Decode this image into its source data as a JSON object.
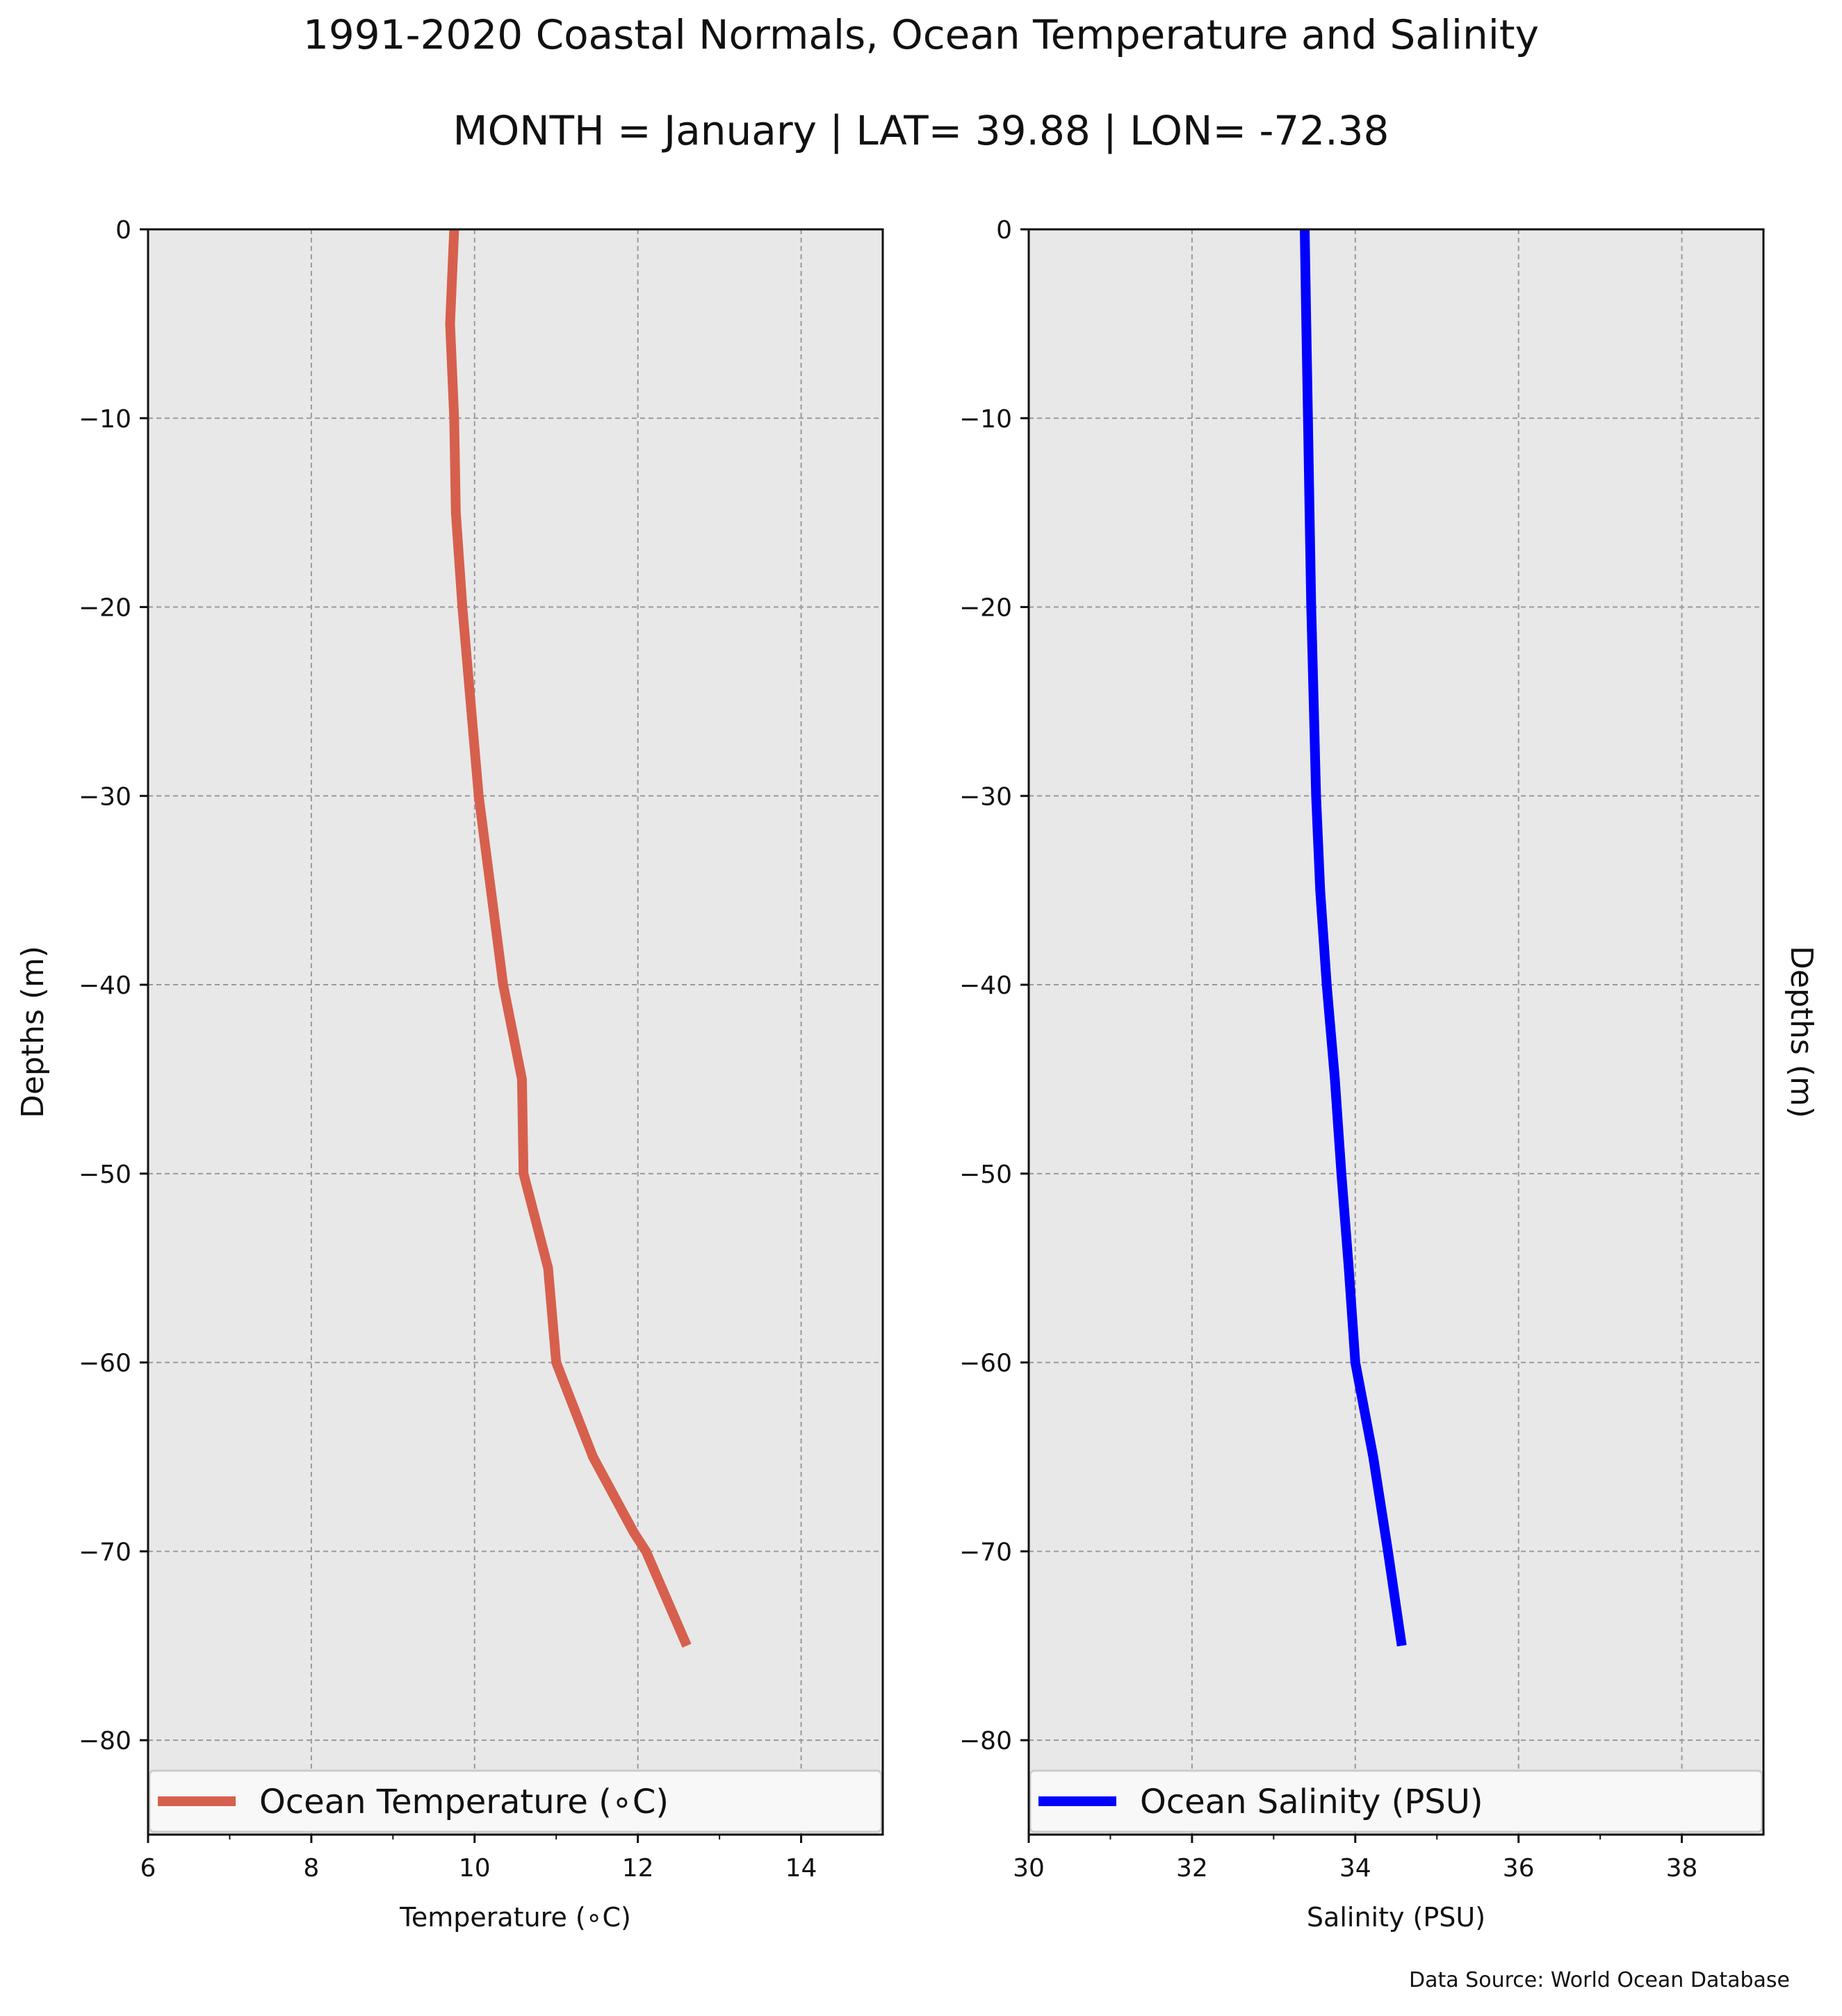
{
  "figure": {
    "title": "1991-2020 Coastal Normals, Ocean Temperature and Salinity",
    "subtitle": "MONTH = January | LAT= 39.88 | LON= -72.38",
    "source": "Data Source: World Ocean Database"
  },
  "chart_data": [
    {
      "type": "line",
      "xlabel": "Temperature (∘C)",
      "ylabel": "Depths (m)",
      "ylabel_side": "left",
      "xlim": [
        6,
        15
      ],
      "ylim": [
        -85,
        0
      ],
      "xticks": [
        6,
        8,
        10,
        12,
        14
      ],
      "xtick_labels": [
        "6",
        "8",
        "10",
        "12",
        "14"
      ],
      "yticks": [
        0,
        -10,
        -20,
        -30,
        -40,
        -50,
        -60,
        -70,
        -80
      ],
      "ytick_labels": [
        "0",
        "−10",
        "−20",
        "−30",
        "−40",
        "−50",
        "−60",
        "−70",
        "−80"
      ],
      "grid": true,
      "legend": "lower center",
      "background": "#e8e8e8",
      "series": [
        {
          "name": "Ocean Temperature (∘C)",
          "color": "#d6604d",
          "points": [
            [
              9.75,
              0
            ],
            [
              9.7,
              -5
            ],
            [
              9.75,
              -10
            ],
            [
              9.77,
              -15
            ],
            [
              9.85,
              -20
            ],
            [
              9.95,
              -25
            ],
            [
              10.05,
              -30
            ],
            [
              10.2,
              -35
            ],
            [
              10.35,
              -40
            ],
            [
              10.58,
              -45
            ],
            [
              10.6,
              -50
            ],
            [
              10.9,
              -55
            ],
            [
              11.0,
              -60
            ],
            [
              11.45,
              -65
            ],
            [
              11.95,
              -69
            ],
            [
              12.1,
              -70
            ],
            [
              12.6,
              -75
            ]
          ]
        }
      ]
    },
    {
      "type": "line",
      "xlabel": "Salinity (PSU)",
      "ylabel": "Depths (m)",
      "ylabel_side": "right",
      "xlim": [
        30,
        39
      ],
      "ylim": [
        -85,
        0
      ],
      "xticks": [
        30,
        32,
        34,
        36,
        38
      ],
      "xtick_labels": [
        "30",
        "32",
        "34",
        "36",
        "38"
      ],
      "yticks": [
        0,
        -10,
        -20,
        -30,
        -40,
        -50,
        -60,
        -70,
        -80
      ],
      "ytick_labels": [
        "0",
        "−10",
        "−20",
        "−30",
        "−40",
        "−50",
        "−60",
        "−70",
        "−80"
      ],
      "grid": true,
      "legend": "lower center",
      "background": "#e8e8e8",
      "series": [
        {
          "name": "Ocean Salinity (PSU)",
          "color": "#0000ff",
          "points": [
            [
              33.38,
              0
            ],
            [
              33.4,
              -5
            ],
            [
              33.42,
              -10
            ],
            [
              33.44,
              -15
            ],
            [
              33.46,
              -20
            ],
            [
              33.49,
              -25
            ],
            [
              33.52,
              -30
            ],
            [
              33.57,
              -35
            ],
            [
              33.65,
              -40
            ],
            [
              33.75,
              -45
            ],
            [
              33.83,
              -50
            ],
            [
              33.92,
              -55
            ],
            [
              34.0,
              -60
            ],
            [
              34.22,
              -65
            ],
            [
              34.4,
              -70
            ],
            [
              34.57,
              -75
            ]
          ]
        }
      ]
    }
  ]
}
